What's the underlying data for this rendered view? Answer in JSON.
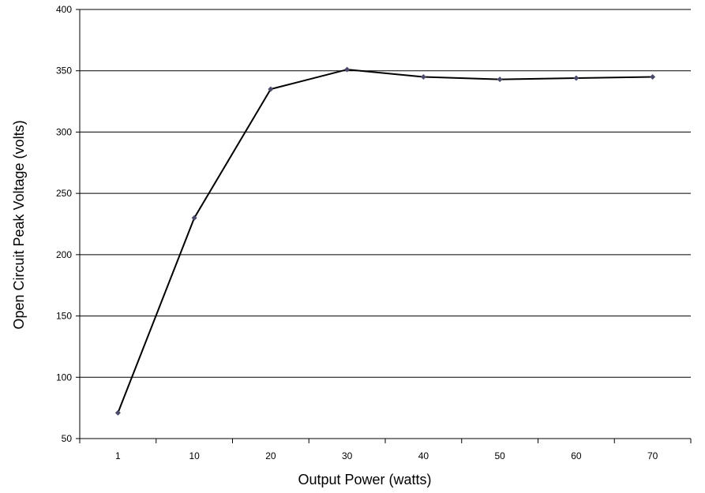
{
  "chart_data": {
    "type": "line",
    "xlabel": "Output Power (watts)",
    "ylabel": "Open Circuit Peak Voltage (volts)",
    "categories": [
      "1",
      "10",
      "20",
      "30",
      "40",
      "50",
      "60",
      "70"
    ],
    "series": [
      {
        "values": [
          71,
          230,
          335,
          351,
          345,
          343,
          344,
          345
        ]
      }
    ],
    "ylim": [
      50,
      400
    ],
    "yticks": [
      50,
      100,
      150,
      200,
      250,
      300,
      350,
      400
    ],
    "grid": true,
    "legend": "none",
    "colors": {
      "line": "#000000",
      "marker": "#4a4a6a",
      "grid": "#000000"
    }
  }
}
